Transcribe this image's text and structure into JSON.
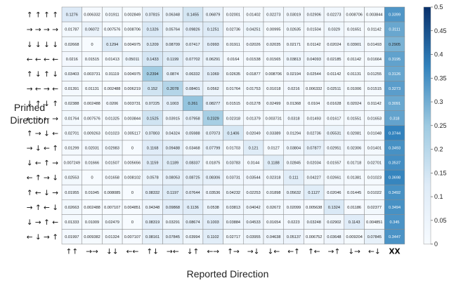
{
  "chart_data": {
    "type": "heatmap",
    "ylabel": "Primed Direction",
    "xlabel": "Reported Direction",
    "row_labels": [
      "↑ ↑ ↑ ↑",
      "→ → → →",
      "↓ ↓ ↓ ↓",
      "← ← ← ←",
      "↑ ↓ ↑ ↓",
      "→ ← → ←",
      "↓ ↑ ↓ ↑",
      "← → ← →",
      "↑ → ↓ ←",
      "→ ↓ ← ↑",
      "↓ ← ↑ →",
      "← ↑ → ↓",
      "↑ ← ↓ →",
      "→ ↑ ← ↓",
      "↓ → ↑ ←",
      "← ↓ → ↑"
    ],
    "col_labels": [
      "↑↑",
      "→→",
      "↓↓",
      "←←",
      "↑↓",
      "→←",
      "↓↑",
      "←→",
      "↑→",
      "→↓",
      "↓←",
      "←↑",
      "↑←",
      "→↑",
      "↓→",
      "←↓",
      "XX"
    ],
    "values": [
      [
        "0.1276",
        "0.006332",
        "0.01911",
        "0.002849",
        "0.07815",
        "0.06348",
        "0.1455",
        "0.06879",
        "0.02001",
        "0.01402",
        "0.02273",
        "0.03019",
        "0.02906",
        "0.02273",
        "0.008706",
        "0.003844",
        "0.3399"
      ],
      [
        "0.01787",
        "0.06072",
        "0.007576",
        "0.008706",
        "0.1326",
        "0.05764",
        "0.09826",
        "0.1251",
        "0.02736",
        "0.04251",
        "0.00995",
        "0.02635",
        "0.01504",
        "0.0329",
        "0.01651",
        "0.01142",
        "0.3111"
      ],
      [
        "0.02668",
        "0",
        "0.1294",
        "0.004975",
        "0.1209",
        "0.08709",
        "0.07417",
        "0.0993",
        "0.01911",
        "0.02026",
        "0.02035",
        "0.02171",
        "0.01142",
        "0.02024",
        "0.03901",
        "0.01493",
        "0.2905"
      ],
      [
        "0.0216",
        "0.01515",
        "0.01413",
        "0.05011",
        "0.1433",
        "0.1199",
        "0.07702",
        "0.06291",
        "0.0164",
        "0.01538",
        "0.01565",
        "0.03813",
        "0.04093",
        "0.02185",
        "0.01142",
        "0.01664",
        "0.3195"
      ],
      [
        "0.03403",
        "0.003731",
        "0.01119",
        "0.004975",
        "0.2394",
        "0.0874",
        "0.06332",
        "0.1069",
        "0.02635",
        "0.01877",
        "0.008706",
        "0.02194",
        "0.02544",
        "0.01142",
        "0.01131",
        "0.01255",
        "0.3126"
      ],
      [
        "0.01391",
        "0.01131",
        "0.002488",
        "0.006219",
        "0.152",
        "0.2078",
        "0.08401",
        "0.0562",
        "0.01764",
        "0.01753",
        "0.01018",
        "0.0216",
        "0.006332",
        "0.02511",
        "0.01006",
        "0.01515",
        "0.3273"
      ],
      [
        "0.02388",
        "0.002488",
        "0.0206",
        "0.003731",
        "0.07225",
        "0.1003",
        "0.261",
        "0.08277",
        "0.01515",
        "0.01278",
        "0.02499",
        "0.01368",
        "0.0104",
        "0.01628",
        "0.02024",
        "0.01142",
        "0.3091"
      ],
      [
        "0.01764",
        "0.007576",
        "0.01325",
        "0.003844",
        "0.1525",
        "0.03915",
        "0.07958",
        "0.2329",
        "0.02318",
        "0.01379",
        "0.003731",
        "0.0318",
        "0.01493",
        "0.01617",
        "0.01551",
        "0.01653",
        "0.318"
      ],
      [
        "0.02701",
        "0.009263",
        "0.01023",
        "0.005117",
        "0.07803",
        "0.04324",
        "0.05988",
        "0.07073",
        "0.1406",
        "0.02049",
        "0.03389",
        "0.01294",
        "0.02736",
        "0.05531",
        "0.02081",
        "0.01048",
        "0.3744"
      ],
      [
        "0.01299",
        "0.02031",
        "0.02983",
        "0",
        "0.1168",
        "0.09488",
        "0.03468",
        "0.07799",
        "0.01703",
        "0.121",
        "0.0127",
        "0.03804",
        "0.07877",
        "0.02951",
        "0.02306",
        "0.01401",
        "0.3493"
      ],
      [
        "0.007249",
        "0.01666",
        "0.01507",
        "0.005656",
        "0.1159",
        "0.1189",
        "0.08337",
        "0.01875",
        "0.03783",
        "0.0144",
        "0.1188",
        "0.02845",
        "0.02034",
        "0.01557",
        "0.01718",
        "0.02701",
        "0.3537"
      ],
      [
        "0.02553",
        "0",
        "0.01658",
        "0.008102",
        "0.0578",
        "0.08053",
        "0.08725",
        "0.08306",
        "0.03731",
        "0.03544",
        "0.02318",
        "0.111",
        "0.04227",
        "0.02661",
        "0.01381",
        "0.01023",
        "0.3698"
      ],
      [
        "0.01955",
        "0.01045",
        "0.008085",
        "0",
        "0.08332",
        "0.1197",
        "0.07644",
        "0.03536",
        "0.04232",
        "0.02253",
        "0.01898",
        "0.05632",
        "0.1127",
        "0.02046",
        "0.01445",
        "0.01022",
        "0.3492"
      ],
      [
        "0.02663",
        "0.002488",
        "0.007107",
        "0.004851",
        "0.04348",
        "0.09868",
        "0.1136",
        "0.0538",
        "0.03813",
        "0.04042",
        "0.02672",
        "0.02099",
        "0.005638",
        "0.1324",
        "0.01186",
        "0.02377",
        "0.3494"
      ],
      [
        "0.01333",
        "0.01009",
        "0.02479",
        "0",
        "0.08319",
        "0.03291",
        "0.08674",
        "0.1003",
        "0.03884",
        "0.04533",
        "0.01654",
        "0.0223",
        "0.03248",
        "0.02902",
        "0.1143",
        "0.004851",
        "0.345"
      ],
      [
        "0.01997",
        "0.009382",
        "0.01324",
        "0.007107",
        "0.08161",
        "0.07845",
        "0.03994",
        "0.1102",
        "0.02717",
        "0.03955",
        "0.04638",
        "0.05137",
        "0.006752",
        "0.03648",
        "0.009204",
        "0.07845",
        "0.3447"
      ]
    ],
    "colorbar": {
      "min": 0,
      "max": 0.5,
      "ticks": [
        "0",
        "0.05",
        "0.1",
        "0.15",
        "0.2",
        "0.25",
        "0.3",
        "0.35",
        "0.4",
        "0.45",
        "0.5"
      ]
    },
    "colors": {
      "low": "#f7fbff",
      "mid": "#9ecae1",
      "high": "#08306b",
      "grid": "#8a8a8a"
    }
  }
}
